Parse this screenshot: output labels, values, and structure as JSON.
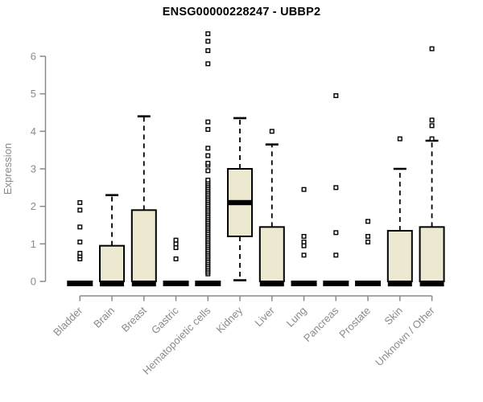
{
  "chart_data": {
    "type": "boxplot",
    "title": "ENSG00000228247 - UBBP2",
    "ylabel": "Expression",
    "xlabel": "",
    "ylim": [
      0,
      6.7
    ],
    "yticks": [
      0,
      1,
      2,
      3,
      4,
      5,
      6
    ],
    "grid": false,
    "legend": null,
    "x_label_rotation_deg": 45,
    "colors": {
      "box_fill": "#EDE8D0",
      "box_stroke": "#000000",
      "median": "#000000",
      "whisker": "#000000",
      "outlier_stroke": "#000000",
      "axis": "#8A8A8A",
      "tick_label": "#8A8A8A",
      "title": "#000000",
      "background": "#FFFFFF"
    },
    "categories": [
      "Bladder",
      "Brain",
      "Breast",
      "Gastric",
      "Hematopoietic cells",
      "Kidney",
      "Liver",
      "Lung",
      "Pancreas",
      "Prostate",
      "Skin",
      "Unknown / Other"
    ],
    "boxes": [
      {
        "label": "Bladder",
        "q1": 0,
        "median": 0,
        "q3": 0,
        "whisker_low": 0,
        "whisker_high": 0,
        "outliers": [
          0.6,
          0.68,
          0.75,
          1.05,
          1.45,
          1.9,
          2.1
        ]
      },
      {
        "label": "Brain",
        "q1": 0,
        "median": 0,
        "q3": 0.95,
        "whisker_low": 0,
        "whisker_high": 2.3,
        "outliers": []
      },
      {
        "label": "Breast",
        "q1": 0,
        "median": 0,
        "q3": 1.9,
        "whisker_low": 0,
        "whisker_high": 4.4,
        "outliers": []
      },
      {
        "label": "Gastric",
        "q1": 0,
        "median": 0,
        "q3": 0,
        "whisker_low": 0,
        "whisker_high": 0,
        "outliers": [
          0.6,
          0.9,
          1.0,
          1.1
        ]
      },
      {
        "label": "Hematopoietic cells",
        "q1": 0,
        "median": 0,
        "q3": 0,
        "whisker_low": 0,
        "whisker_high": 0,
        "outliers": [
          0.2,
          0.25,
          0.3,
          0.35,
          0.4,
          0.45,
          0.5,
          0.55,
          0.6,
          0.65,
          0.7,
          0.75,
          0.8,
          0.85,
          0.9,
          0.95,
          1.0,
          1.05,
          1.1,
          1.15,
          1.2,
          1.25,
          1.3,
          1.35,
          1.4,
          1.45,
          1.5,
          1.55,
          1.6,
          1.65,
          1.7,
          1.75,
          1.8,
          1.85,
          1.9,
          1.95,
          2.0,
          2.05,
          2.1,
          2.15,
          2.2,
          2.25,
          2.3,
          2.35,
          2.4,
          2.45,
          2.5,
          2.55,
          2.6,
          2.65,
          2.7,
          2.95,
          3.1,
          3.15,
          3.35,
          3.55,
          4.05,
          4.25,
          5.8,
          6.15,
          6.4,
          6.6
        ]
      },
      {
        "label": "Kidney",
        "q1": 1.2,
        "median": 2.1,
        "q3": 3.0,
        "whisker_low": 0.03,
        "whisker_high": 4.35,
        "outliers": []
      },
      {
        "label": "Liver",
        "q1": 0,
        "median": 0,
        "q3": 1.45,
        "whisker_low": 0,
        "whisker_high": 3.65,
        "outliers": [
          4.0
        ]
      },
      {
        "label": "Lung",
        "q1": 0,
        "median": 0,
        "q3": 0,
        "whisker_low": 0,
        "whisker_high": 0,
        "outliers": [
          0.7,
          0.95,
          1.05,
          1.2,
          2.45
        ]
      },
      {
        "label": "Pancreas",
        "q1": 0,
        "median": 0,
        "q3": 0,
        "whisker_low": 0,
        "whisker_high": 0,
        "outliers": [
          0.7,
          1.3,
          2.5,
          4.95
        ]
      },
      {
        "label": "Prostate",
        "q1": 0,
        "median": 0,
        "q3": 0,
        "whisker_low": 0,
        "whisker_high": 0,
        "outliers": [
          1.05,
          1.2,
          1.6
        ]
      },
      {
        "label": "Skin",
        "q1": 0,
        "median": 0,
        "q3": 1.35,
        "whisker_low": 0,
        "whisker_high": 3.0,
        "outliers": [
          3.8
        ]
      },
      {
        "label": "Unknown / Other",
        "q1": 0,
        "median": 0,
        "q3": 1.45,
        "whisker_low": 0,
        "whisker_high": 3.75,
        "outliers": [
          3.8,
          4.15,
          4.3,
          6.2
        ]
      }
    ]
  }
}
